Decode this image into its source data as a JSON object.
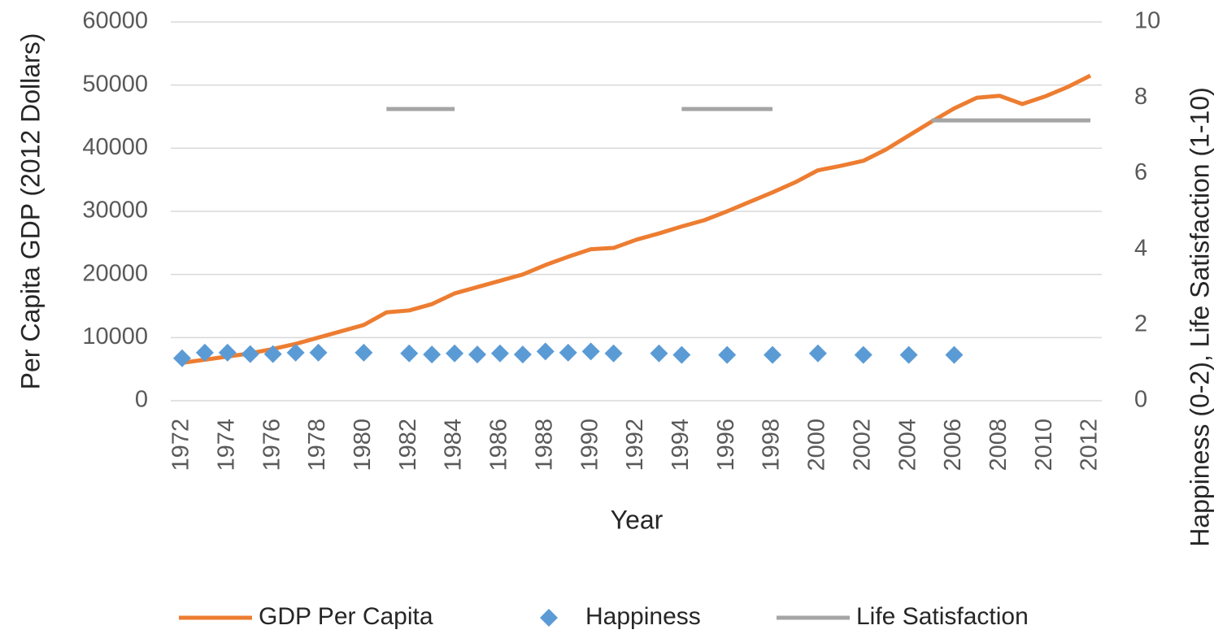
{
  "chart_data": {
    "type": "line",
    "x_label": "Year",
    "y_label": "Per Capita GDP (2012 Dollars)",
    "y2_label": "Happiness (0-2), Life Satisfaction (1-10)",
    "categories": [
      "1972",
      null,
      "1974",
      null,
      "1976",
      null,
      "1978",
      null,
      "1980",
      null,
      "1982",
      null,
      "1984",
      null,
      "1986",
      null,
      "1988",
      null,
      "1990",
      null,
      "1992",
      null,
      "1994",
      null,
      "1996",
      null,
      "1998",
      null,
      "2000",
      null,
      "2002",
      null,
      "2004",
      null,
      "2006",
      null,
      "2008",
      null,
      "2010",
      null,
      "2012"
    ],
    "series": [
      {
        "name": "GDP Per Capita",
        "type": "line",
        "color": "#ed7d31",
        "axis": "y",
        "values": [
          6000,
          6500,
          7000,
          7500,
          8200,
          9000,
          10000,
          11000,
          12000,
          14000,
          14300,
          15300,
          17000,
          18000,
          19000,
          20000,
          21500,
          22800,
          24000,
          24200,
          25500,
          26500,
          27600,
          28600,
          30000,
          31500,
          33000,
          34600,
          36500,
          37200,
          38000,
          39800,
          42000,
          44200,
          46300,
          48000,
          48300,
          47000,
          48200,
          49700,
          51500
        ]
      },
      {
        "name": "Happiness",
        "type": "scatter",
        "color": "#5b9bd5",
        "axis": "y2",
        "values": [
          1.12,
          1.27,
          1.27,
          1.23,
          1.23,
          1.27,
          1.27,
          null,
          1.27,
          null,
          1.25,
          1.22,
          1.25,
          1.22,
          1.25,
          1.22,
          1.3,
          1.27,
          1.3,
          1.25,
          null,
          1.25,
          1.21,
          null,
          1.21,
          null,
          1.21,
          null,
          1.25,
          null,
          1.21,
          null,
          1.21,
          null,
          1.21,
          null,
          null,
          null,
          null,
          null,
          null
        ]
      },
      {
        "name": "Life Satisfaction",
        "type": "line",
        "color": "#a5a5a5",
        "axis": "y2",
        "values": [
          null,
          null,
          null,
          null,
          null,
          null,
          null,
          null,
          null,
          7.7,
          7.7,
          7.7,
          7.7,
          null,
          null,
          null,
          null,
          null,
          null,
          null,
          null,
          null,
          7.7,
          7.7,
          7.7,
          7.7,
          7.7,
          null,
          null,
          null,
          null,
          null,
          null,
          7.4,
          7.4,
          7.4,
          7.4,
          7.4,
          7.4,
          7.4,
          7.4
        ]
      }
    ],
    "ylim": [
      0,
      60000
    ],
    "yticks": [
      0,
      10000,
      20000,
      30000,
      40000,
      50000,
      60000
    ],
    "y2lim": [
      0,
      10
    ],
    "y2ticks": [
      0,
      2,
      4,
      6,
      8,
      10
    ],
    "grid": true,
    "legend": "bottom"
  }
}
